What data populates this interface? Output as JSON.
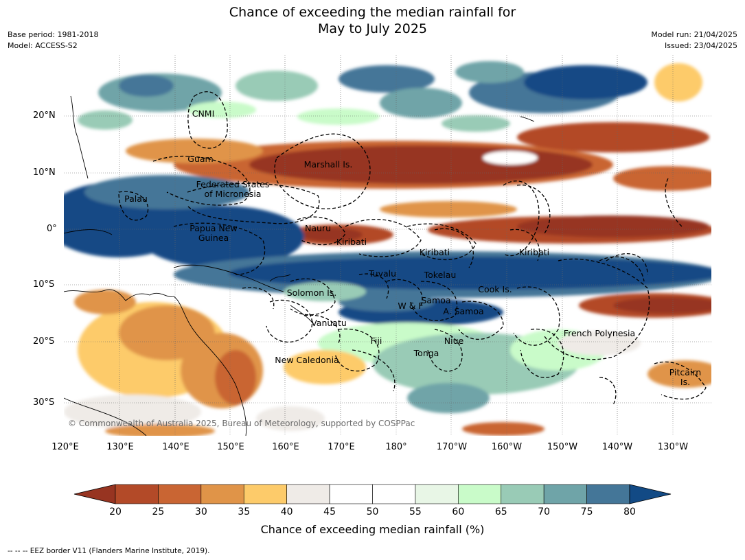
{
  "title_line1": "Chance of exceeding the median rainfall for",
  "title_line2": "May to July 2025",
  "base_period": "Base period: 1981-2018",
  "model": "Model: ACCESS-S2",
  "model_run": "Model run: 21/04/2025",
  "issued": "Issued: 23/04/2025",
  "lat_labels": [
    "20°N",
    "10°N",
    "0°",
    "10°S",
    "20°S",
    "30°S"
  ],
  "lon_labels": [
    "120°E",
    "130°E",
    "140°E",
    "150°E",
    "160°E",
    "170°E",
    "180°",
    "170°W",
    "160°W",
    "150°W",
    "140°W",
    "130°W"
  ],
  "regions": {
    "cnmi": "CNMI",
    "guam": "Guam",
    "marshall": "Marshall Is.",
    "fsm_1": "Federated States",
    "fsm_2": "of Micronesia",
    "palau": "Palau",
    "png_1": "Papua New",
    "png_2": "Guinea",
    "nauru": "Nauru",
    "kiribati_w": "Kiribati",
    "kiribati_c": "Kiribati",
    "kiribati_e": "Kiribati",
    "tuvalu": "Tuvalu",
    "tokelau": "Tokelau",
    "cook": "Cook Is.",
    "solomon": "Solomon Is.",
    "samoa": "Samoa",
    "wf": "W & F",
    "asamoa": "A. Samoa",
    "vanuatu": "Vanuatu",
    "french_polynesia": "French Polynesia",
    "fiji": "Fiji",
    "niue": "Niue",
    "tonga": "Tonga",
    "new_caledonia": "New Caledonia",
    "pitcairn_1": "Pitcairn",
    "pitcairn_2": "Is."
  },
  "copyright": "© Commonwealth of Australia 2025, Bureau of Meteorology, supported by COSPPac",
  "legend": {
    "ticks": [
      "20",
      "25",
      "30",
      "35",
      "40",
      "45",
      "50",
      "55",
      "60",
      "65",
      "70",
      "75",
      "80"
    ],
    "colors": [
      "#973421",
      "#b34a28",
      "#c96533",
      "#e09448",
      "#fdcb6a",
      "#efebe7",
      "#ffffff",
      "#ffffff",
      "#e8f6e6",
      "#c9fbc9",
      "#99cbb6",
      "#6fa4a8",
      "#447698",
      "#124a85"
    ],
    "title": "Chance of exceeding median rainfall (%)"
  },
  "footer": "--  --  -- EEZ border V11 (Flanders Marine Institute, 2019)."
}
